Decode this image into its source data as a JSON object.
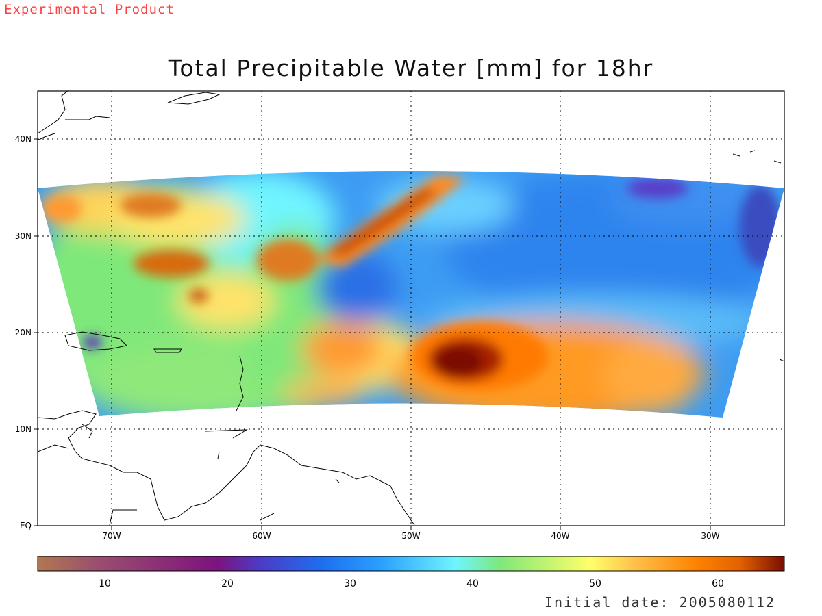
{
  "badge": "Experimental Product",
  "title": "Total Precipitable Water [mm] for 18hr",
  "footer": "Initial date: 2005080112",
  "map": {
    "lat_labels": [
      "EQ",
      "10N",
      "20N",
      "30N",
      "40N"
    ],
    "lon_labels": [
      "70W",
      "60W",
      "50W",
      "40W",
      "30W"
    ],
    "lon_range": [
      "75W",
      "25W"
    ],
    "lat_range": [
      "EQ",
      "45N"
    ],
    "grid": "dotted"
  },
  "colorbar": {
    "tick_labels": [
      "10",
      "20",
      "30",
      "40",
      "50",
      "60"
    ],
    "range": [
      5,
      66
    ],
    "colors": [
      "#b07850",
      "#9a4f6f",
      "#7d137d",
      "#4b3cc8",
      "#1e6ef0",
      "#2aa0ff",
      "#6ff5ff",
      "#7fe87a",
      "#ffff6a",
      "#ffc04a",
      "#ff8400",
      "#e46200",
      "#7a0d00"
    ]
  },
  "features": {
    "hurricane_center": "47W 17N",
    "high_moisture_band": "55W-47W, 27N-37N"
  }
}
